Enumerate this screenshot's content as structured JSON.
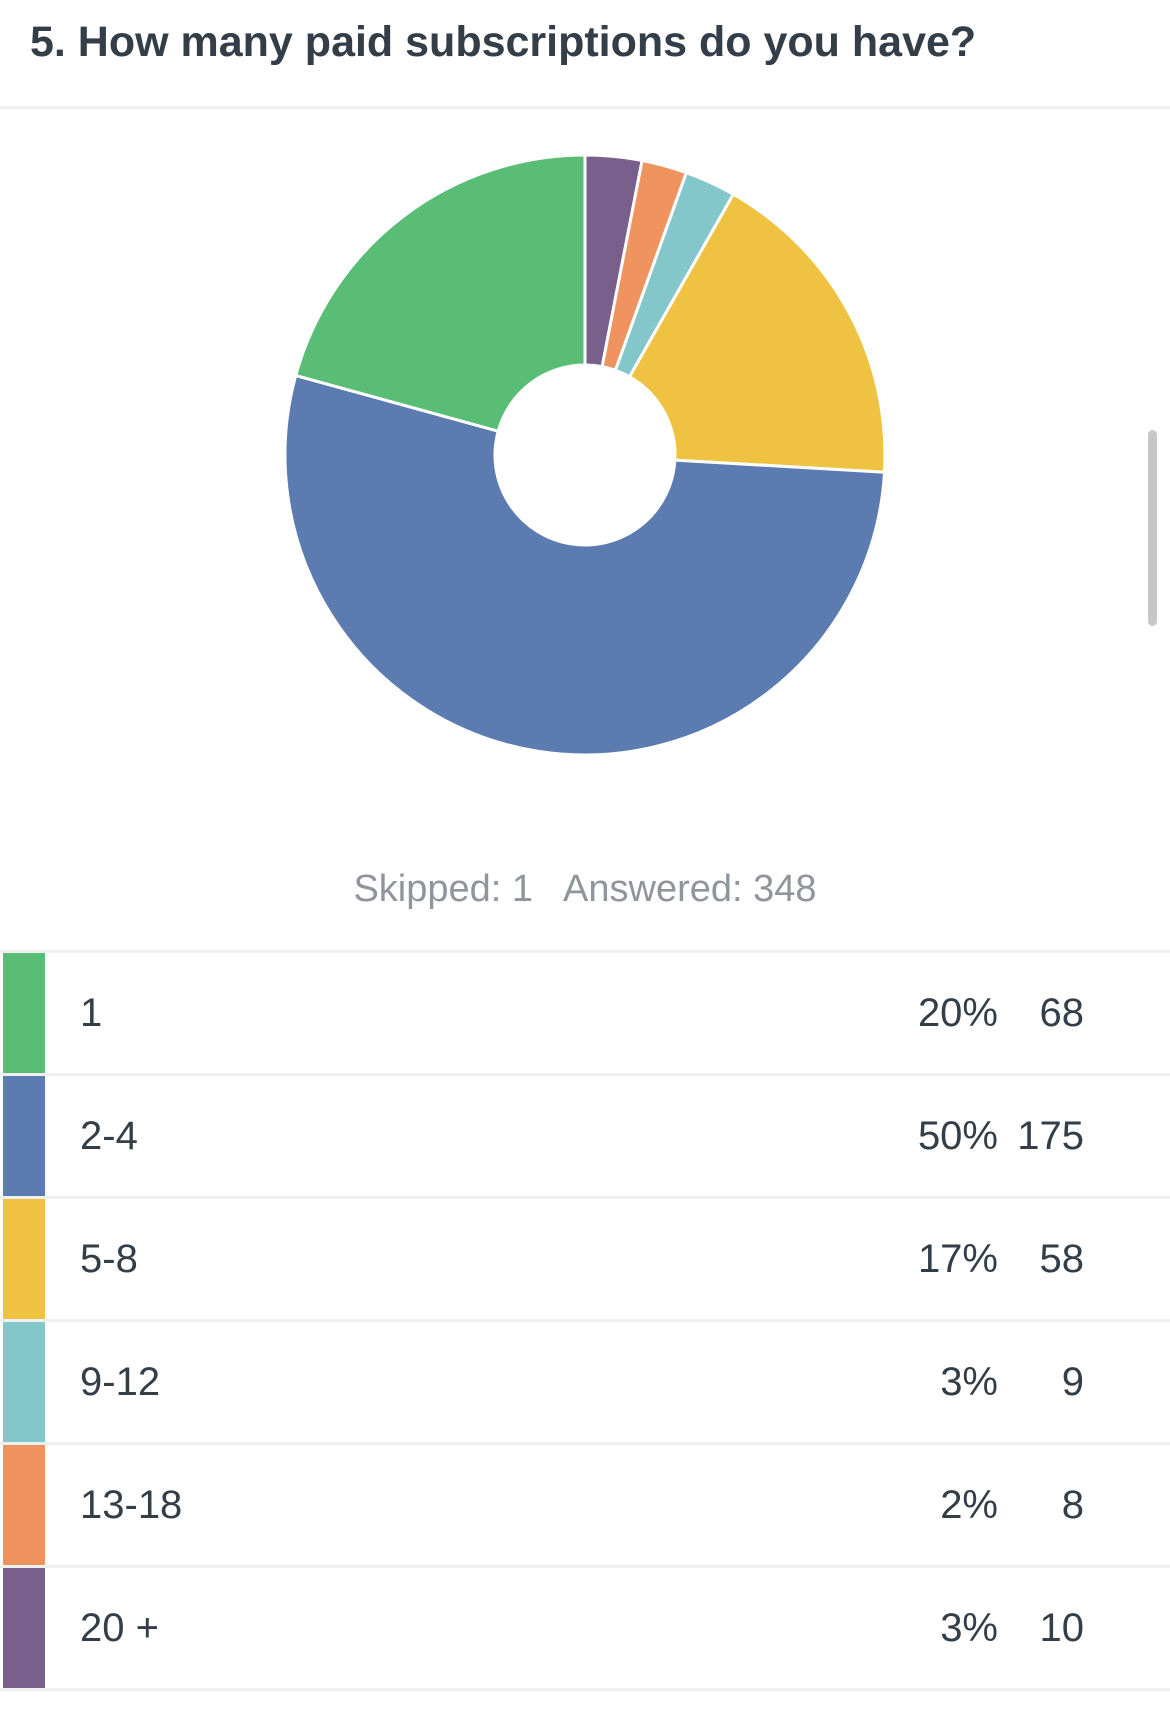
{
  "question": {
    "title": "5. How many paid subscriptions do you have?"
  },
  "stats": {
    "skipped": "Skipped: 1",
    "answered": "Answered: 348"
  },
  "chart_data": {
    "type": "pie",
    "title": "5. How many paid subscriptions do you have?",
    "donut": true,
    "slices": [
      {
        "label": "20 +",
        "value": 10,
        "percent": "3%",
        "color": "#785f8c"
      },
      {
        "label": "13-18",
        "value": 8,
        "percent": "2%",
        "color": "#ef935f"
      },
      {
        "label": "9-12",
        "value": 9,
        "percent": "3%",
        "color": "#84c7ca"
      },
      {
        "label": "5-8",
        "value": 58,
        "percent": "17%",
        "color": "#efc242"
      },
      {
        "label": "2-4",
        "value": 175,
        "percent": "50%",
        "color": "#5b7bb1"
      },
      {
        "label": "1",
        "value": 68,
        "percent": "20%",
        "color": "#59bd76"
      }
    ],
    "total": 348
  },
  "table": {
    "rows": [
      {
        "label": "1",
        "percent": "20%",
        "count": "68",
        "color": "#59bd76"
      },
      {
        "label": "2-4",
        "percent": "50%",
        "count": "175",
        "color": "#5b7bb1"
      },
      {
        "label": "5-8",
        "percent": "17%",
        "count": "58",
        "color": "#efc242"
      },
      {
        "label": "9-12",
        "percent": "3%",
        "count": "9",
        "color": "#84c7ca"
      },
      {
        "label": "13-18",
        "percent": "2%",
        "count": "8",
        "color": "#ef935f"
      },
      {
        "label": "20 +",
        "percent": "3%",
        "count": "10",
        "color": "#785f8c"
      }
    ]
  }
}
